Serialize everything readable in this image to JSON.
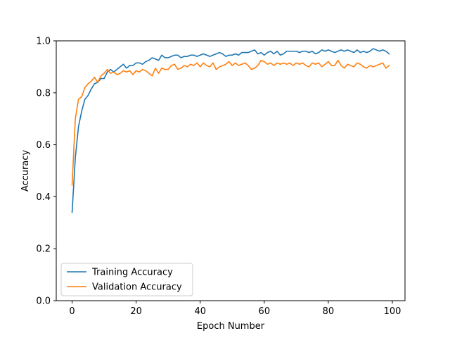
{
  "chart_data": {
    "type": "line",
    "title": "",
    "xlabel": "Epoch Number",
    "ylabel": "Accuracy",
    "xlim": [
      -4.95,
      103.95
    ],
    "ylim": [
      0,
      1.0
    ],
    "xticks": [
      0,
      20,
      40,
      60,
      80,
      100
    ],
    "yticks": [
      0.0,
      0.2,
      0.4,
      0.6,
      0.8,
      1.0
    ],
    "xtick_labels": [
      "0",
      "20",
      "40",
      "60",
      "80",
      "100"
    ],
    "ytick_labels": [
      "0.0",
      "0.2",
      "0.4",
      "0.6",
      "0.8",
      "1.0"
    ],
    "grid": false,
    "legend_position": "lower-left",
    "series": [
      {
        "name": "Training Accuracy",
        "color": "#1f77b4",
        "values": [
          0.34,
          0.55,
          0.67,
          0.73,
          0.775,
          0.79,
          0.815,
          0.835,
          0.84,
          0.855,
          0.855,
          0.88,
          0.89,
          0.88,
          0.89,
          0.9,
          0.91,
          0.895,
          0.905,
          0.905,
          0.915,
          0.915,
          0.91,
          0.92,
          0.925,
          0.935,
          0.93,
          0.925,
          0.945,
          0.935,
          0.935,
          0.94,
          0.945,
          0.945,
          0.935,
          0.94,
          0.94,
          0.945,
          0.945,
          0.94,
          0.945,
          0.95,
          0.945,
          0.94,
          0.945,
          0.95,
          0.955,
          0.95,
          0.94,
          0.945,
          0.945,
          0.95,
          0.945,
          0.955,
          0.955,
          0.955,
          0.96,
          0.965,
          0.95,
          0.955,
          0.945,
          0.955,
          0.96,
          0.95,
          0.96,
          0.945,
          0.95,
          0.96,
          0.96,
          0.96,
          0.96,
          0.955,
          0.96,
          0.96,
          0.955,
          0.96,
          0.95,
          0.955,
          0.965,
          0.96,
          0.965,
          0.96,
          0.955,
          0.96,
          0.965,
          0.96,
          0.965,
          0.96,
          0.955,
          0.965,
          0.955,
          0.96,
          0.955,
          0.96,
          0.97,
          0.965,
          0.96,
          0.965,
          0.96,
          0.95
        ]
      },
      {
        "name": "Validation Accuracy",
        "color": "#ff7f0e",
        "values": [
          0.445,
          0.7,
          0.775,
          0.785,
          0.82,
          0.835,
          0.845,
          0.86,
          0.84,
          0.865,
          0.875,
          0.89,
          0.875,
          0.88,
          0.87,
          0.875,
          0.885,
          0.88,
          0.885,
          0.87,
          0.885,
          0.88,
          0.89,
          0.885,
          0.875,
          0.865,
          0.895,
          0.875,
          0.895,
          0.89,
          0.89,
          0.905,
          0.91,
          0.89,
          0.895,
          0.905,
          0.9,
          0.91,
          0.905,
          0.915,
          0.9,
          0.915,
          0.905,
          0.9,
          0.915,
          0.89,
          0.9,
          0.905,
          0.91,
          0.92,
          0.905,
          0.915,
          0.905,
          0.91,
          0.915,
          0.905,
          0.89,
          0.895,
          0.905,
          0.925,
          0.92,
          0.91,
          0.915,
          0.905,
          0.915,
          0.91,
          0.915,
          0.91,
          0.915,
          0.905,
          0.915,
          0.91,
          0.915,
          0.905,
          0.9,
          0.915,
          0.91,
          0.915,
          0.9,
          0.91,
          0.92,
          0.905,
          0.905,
          0.925,
          0.905,
          0.895,
          0.91,
          0.905,
          0.9,
          0.915,
          0.91,
          0.9,
          0.895,
          0.905,
          0.9,
          0.905,
          0.91,
          0.915,
          0.895,
          0.905
        ]
      }
    ]
  }
}
